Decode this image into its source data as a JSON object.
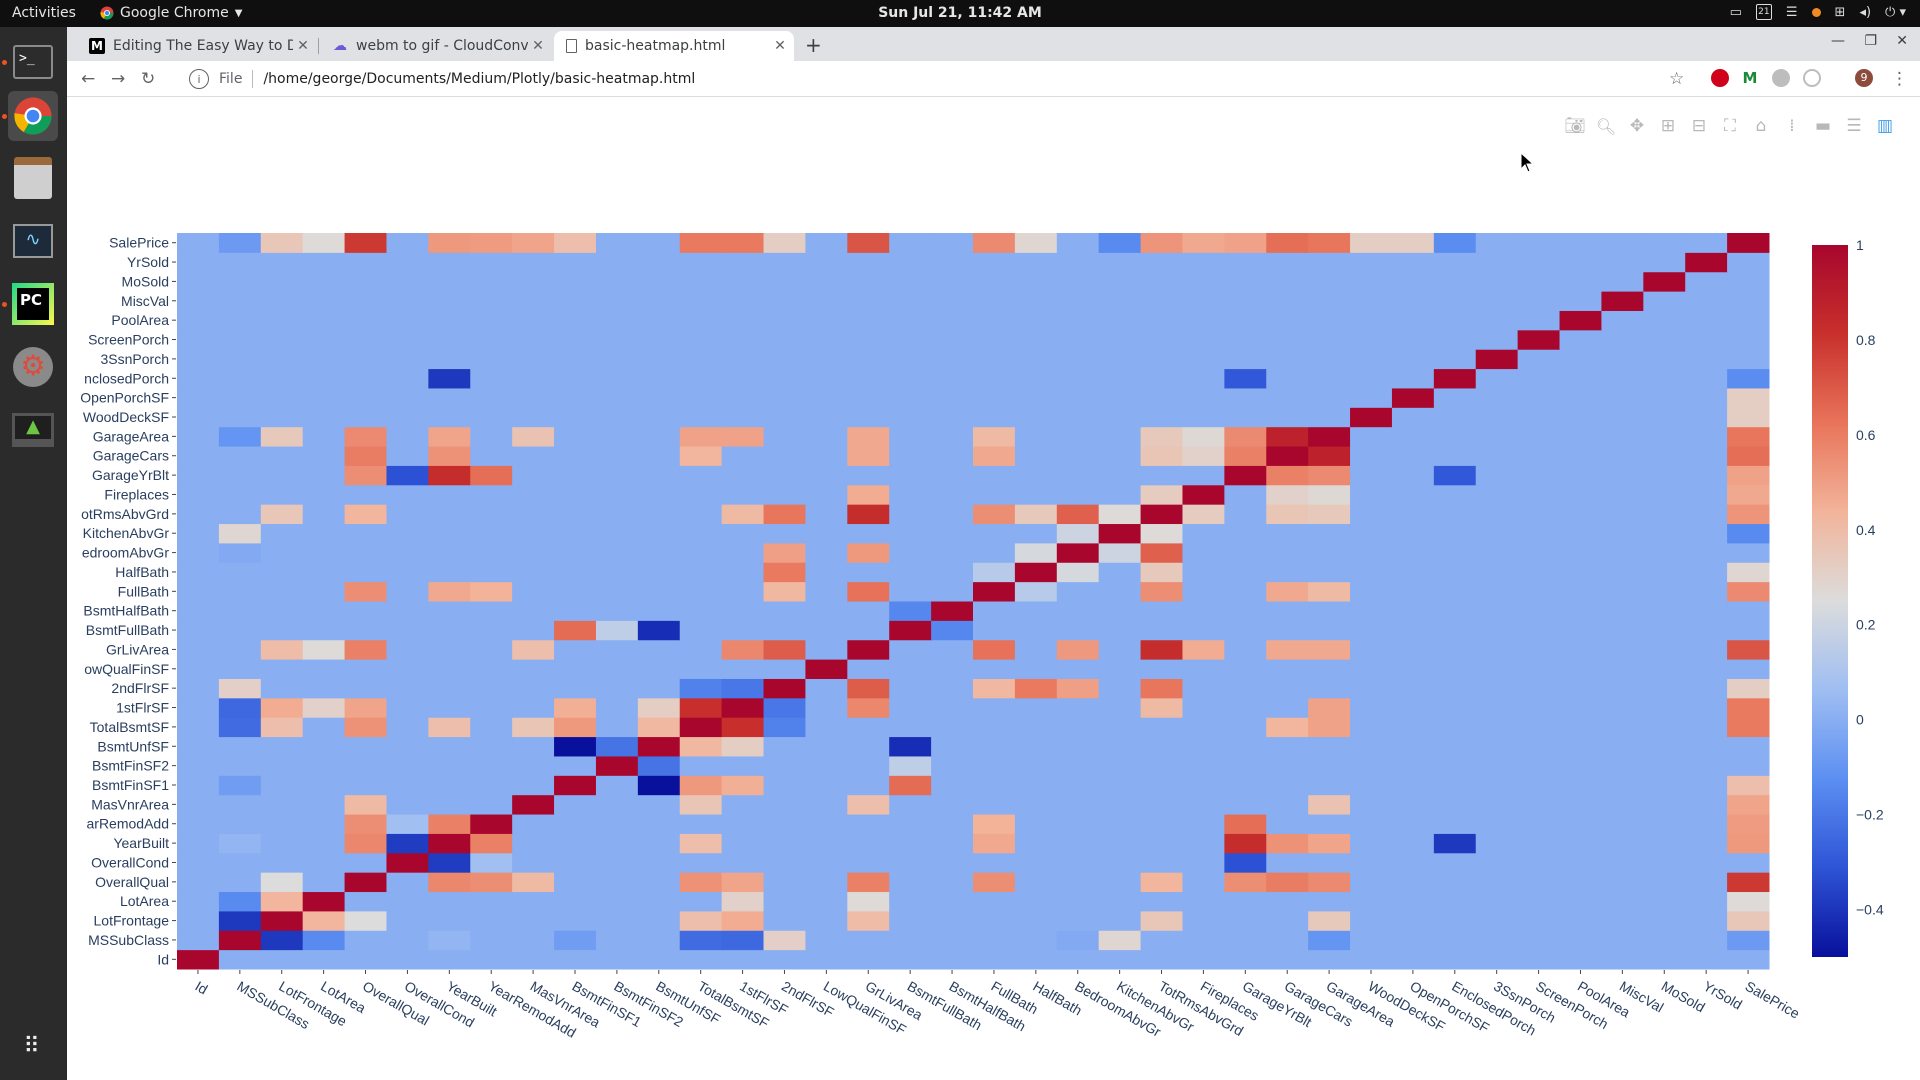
{
  "topbar": {
    "activities": "Activities",
    "app_name": "Google Chrome",
    "clock": "Sun Jul 21, 11:42 AM",
    "tray_date": "21"
  },
  "tabs": [
    {
      "title": "Editing The Easy Way to D",
      "favicon": "M"
    },
    {
      "title": "webm to gif - CloudConve",
      "favicon": "cloud"
    },
    {
      "title": "basic-heatmap.html",
      "favicon": "file"
    }
  ],
  "toolbar": {
    "file_label": "File",
    "url": "/home/george/Documents/Medium/Plotly/basic-heatmap.html",
    "profile_initial": "9"
  },
  "chart_data": {
    "type": "heatmap",
    "variables": [
      "Id",
      "MSSubClass",
      "LotFrontage",
      "LotArea",
      "OverallQual",
      "OverallCond",
      "YearBuilt",
      "YearRemodAdd",
      "MasVnrArea",
      "BsmtFinSF1",
      "BsmtFinSF2",
      "BsmtUnfSF",
      "TotalBsmtSF",
      "1stFlrSF",
      "2ndFlrSF",
      "LowQualFinSF",
      "GrLivArea",
      "BsmtFullBath",
      "BsmtHalfBath",
      "FullBath",
      "HalfBath",
      "BedroomAbvGr",
      "KitchenAbvGr",
      "TotRmsAbvGrd",
      "Fireplaces",
      "GarageYrBlt",
      "GarageCars",
      "GarageArea",
      "WoodDeckSF",
      "OpenPorchSF",
      "EnclosedPorch",
      "3SsnPorch",
      "ScreenPorch",
      "PoolArea",
      "MiscVal",
      "MoSold",
      "YrSold",
      "SalePrice"
    ],
    "y_tick_labels": [
      "Id",
      "MSSubClass",
      "LotFrontage",
      "LotArea",
      "OverallQual",
      "OverallCond",
      "YearBuilt",
      "arRemodAdd",
      "MasVnrArea",
      "BsmtFinSF1",
      "BsmtFinSF2",
      "BsmtUnfSF",
      "TotalBsmtSF",
      "1stFlrSF",
      "2ndFlrSF",
      "owQualFinSF",
      "GrLivArea",
      "BsmtFullBath",
      "BsmtHalfBath",
      "FullBath",
      "HalfBath",
      "edroomAbvGr",
      "KitchenAbvGr",
      "otRmsAbvGrd",
      "Fireplaces",
      "GarageYrBlt",
      "GarageCars",
      "GarageArea",
      "WoodDeckSF",
      "OpenPorchSF",
      "nclosedPorch",
      "3SsnPorch",
      "ScreenPorch",
      "PoolArea",
      "MiscVal",
      "MoSold",
      "YrSold",
      "SalePrice"
    ],
    "zrange": [
      -0.5,
      1
    ],
    "colorbar_ticks": [
      1,
      0.8,
      0.6,
      0.4,
      0.2,
      0,
      -0.2,
      -0.4
    ],
    "colorbar_tick_labels": [
      "1",
      "0.8",
      "0.6",
      "0.4",
      "0.2",
      "0",
      "−0.2",
      "−0.4"
    ],
    "colorscale": [
      "#08109c",
      "#2e54d6",
      "#5c8ff2",
      "#9fbef2",
      "#dcdcdc",
      "#f2b49a",
      "#e8745a",
      "#c8302c",
      "#a8062d"
    ],
    "pairs": [
      [
        "MSSubClass",
        "LotFrontage",
        -0.39
      ],
      [
        "MSSubClass",
        "LotArea",
        -0.14
      ],
      [
        "MSSubClass",
        "YearBuilt",
        0.03
      ],
      [
        "MSSubClass",
        "BsmtFinSF1",
        -0.07
      ],
      [
        "MSSubClass",
        "TotalBsmtSF",
        -0.24
      ],
      [
        "MSSubClass",
        "1stFlrSF",
        -0.25
      ],
      [
        "MSSubClass",
        "2ndFlrSF",
        0.31
      ],
      [
        "MSSubClass",
        "BedroomAbvGr",
        -0.02
      ],
      [
        "MSSubClass",
        "KitchenAbvGr",
        0.28
      ],
      [
        "MSSubClass",
        "GarageArea",
        -0.1
      ],
      [
        "MSSubClass",
        "SalePrice",
        -0.08
      ],
      [
        "LotFrontage",
        "LotArea",
        0.43
      ],
      [
        "LotFrontage",
        "OverallQual",
        0.25
      ],
      [
        "LotFrontage",
        "TotalBsmtSF",
        0.39
      ],
      [
        "LotFrontage",
        "1stFlrSF",
        0.46
      ],
      [
        "LotFrontage",
        "GrLivArea",
        0.4
      ],
      [
        "LotFrontage",
        "TotRmsAbvGrd",
        0.35
      ],
      [
        "LotFrontage",
        "GarageArea",
        0.34
      ],
      [
        "LotFrontage",
        "SalePrice",
        0.35
      ],
      [
        "LotArea",
        "1stFlrSF",
        0.3
      ],
      [
        "LotArea",
        "GrLivArea",
        0.26
      ],
      [
        "LotArea",
        "SalePrice",
        0.26
      ],
      [
        "OverallQual",
        "YearBuilt",
        0.57
      ],
      [
        "OverallQual",
        "YearRemodAdd",
        0.55
      ],
      [
        "OverallQual",
        "MasVnrArea",
        0.41
      ],
      [
        "OverallQual",
        "TotalBsmtSF",
        0.54
      ],
      [
        "OverallQual",
        "1stFlrSF",
        0.48
      ],
      [
        "OverallQual",
        "GrLivArea",
        0.59
      ],
      [
        "OverallQual",
        "FullBath",
        0.55
      ],
      [
        "OverallQual",
        "TotRmsAbvGrd",
        0.43
      ],
      [
        "OverallQual",
        "GarageYrBlt",
        0.55
      ],
      [
        "OverallQual",
        "GarageCars",
        0.6
      ],
      [
        "OverallQual",
        "GarageArea",
        0.56
      ],
      [
        "OverallQual",
        "SalePrice",
        0.79
      ],
      [
        "OverallCond",
        "YearBuilt",
        -0.38
      ],
      [
        "OverallCond",
        "YearRemodAdd",
        0.07
      ],
      [
        "OverallCond",
        "GarageYrBlt",
        -0.32
      ],
      [
        "YearBuilt",
        "YearRemodAdd",
        0.59
      ],
      [
        "YearBuilt",
        "GarageYrBlt",
        0.83
      ],
      [
        "YearBuilt",
        "GarageCars",
        0.54
      ],
      [
        "YearBuilt",
        "GarageArea",
        0.48
      ],
      [
        "YearBuilt",
        "FullBath",
        0.47
      ],
      [
        "YearBuilt",
        "EnclosedPorch",
        -0.39
      ],
      [
        "YearBuilt",
        "SalePrice",
        0.52
      ],
      [
        "YearBuilt",
        "TotalBsmtSF",
        0.39
      ],
      [
        "YearRemodAdd",
        "GarageYrBlt",
        0.64
      ],
      [
        "YearRemodAdd",
        "SalePrice",
        0.51
      ],
      [
        "YearRemodAdd",
        "FullBath",
        0.44
      ],
      [
        "MasVnrArea",
        "GrLivArea",
        0.39
      ],
      [
        "MasVnrArea",
        "GarageArea",
        0.37
      ],
      [
        "MasVnrArea",
        "SalePrice",
        0.48
      ],
      [
        "MasVnrArea",
        "TotalBsmtSF",
        0.36
      ],
      [
        "BsmtFinSF1",
        "BsmtUnfSF",
        -0.5
      ],
      [
        "BsmtFinSF1",
        "TotalBsmtSF",
        0.52
      ],
      [
        "BsmtFinSF1",
        "BsmtFullBath",
        0.65
      ],
      [
        "BsmtFinSF1",
        "1stFlrSF",
        0.45
      ],
      [
        "BsmtFinSF1",
        "SalePrice",
        0.39
      ],
      [
        "BsmtFinSF2",
        "BsmtUnfSF",
        -0.21
      ],
      [
        "BsmtFinSF2",
        "BsmtFullBath",
        0.16
      ],
      [
        "BsmtUnfSF",
        "TotalBsmtSF",
        0.42
      ],
      [
        "BsmtUnfSF",
        "BsmtFullBath",
        -0.42
      ],
      [
        "BsmtUnfSF",
        "1stFlrSF",
        0.32
      ],
      [
        "TotalBsmtSF",
        "1stFlrSF",
        0.82
      ],
      [
        "TotalBsmtSF",
        "GarageArea",
        0.49
      ],
      [
        "TotalBsmtSF",
        "GarageCars",
        0.43
      ],
      [
        "TotalBsmtSF",
        "SalePrice",
        0.61
      ],
      [
        "TotalBsmtSF",
        "2ndFlrSF",
        -0.17
      ],
      [
        "1stFlrSF",
        "GrLivArea",
        0.57
      ],
      [
        "1stFlrSF",
        "GarageArea",
        0.49
      ],
      [
        "1stFlrSF",
        "SalePrice",
        0.61
      ],
      [
        "1stFlrSF",
        "2ndFlrSF",
        -0.2
      ],
      [
        "1stFlrSF",
        "TotRmsAbvGrd",
        0.41
      ],
      [
        "2ndFlrSF",
        "GrLivArea",
        0.69
      ],
      [
        "2ndFlrSF",
        "HalfBath",
        0.61
      ],
      [
        "2ndFlrSF",
        "TotRmsAbvGrd",
        0.62
      ],
      [
        "2ndFlrSF",
        "BedroomAbvGr",
        0.5
      ],
      [
        "2ndFlrSF",
        "FullBath",
        0.42
      ],
      [
        "2ndFlrSF",
        "SalePrice",
        0.32
      ],
      [
        "GrLivArea",
        "FullBath",
        0.63
      ],
      [
        "GrLivArea",
        "TotRmsAbvGrd",
        0.83
      ],
      [
        "GrLivArea",
        "BedroomAbvGr",
        0.52
      ],
      [
        "GrLivArea",
        "GarageCars",
        0.47
      ],
      [
        "GrLivArea",
        "GarageArea",
        0.47
      ],
      [
        "GrLivArea",
        "Fireplaces",
        0.46
      ],
      [
        "GrLivArea",
        "SalePrice",
        0.71
      ],
      [
        "BsmtFullBath",
        "BsmtHalfBath",
        -0.15
      ],
      [
        "FullBath",
        "TotRmsAbvGrd",
        0.55
      ],
      [
        "FullBath",
        "GarageCars",
        0.47
      ],
      [
        "FullBath",
        "GarageArea",
        0.41
      ],
      [
        "FullBath",
        "HalfBath",
        0.14
      ],
      [
        "FullBath",
        "SalePrice",
        0.56
      ],
      [
        "HalfBath",
        "BedroomAbvGr",
        0.23
      ],
      [
        "HalfBath",
        "TotRmsAbvGrd",
        0.34
      ],
      [
        "HalfBath",
        "SalePrice",
        0.28
      ],
      [
        "BedroomAbvGr",
        "TotRmsAbvGrd",
        0.68
      ],
      [
        "BedroomAbvGr",
        "KitchenAbvGr",
        0.2
      ],
      [
        "KitchenAbvGr",
        "TotRmsAbvGrd",
        0.26
      ],
      [
        "KitchenAbvGr",
        "SalePrice",
        -0.14
      ],
      [
        "TotRmsAbvGrd",
        "Fireplaces",
        0.33
      ],
      [
        "TotRmsAbvGrd",
        "GarageCars",
        0.36
      ],
      [
        "TotRmsAbvGrd",
        "GarageArea",
        0.34
      ],
      [
        "TotRmsAbvGrd",
        "SalePrice",
        0.53
      ],
      [
        "Fireplaces",
        "GarageCars",
        0.3
      ],
      [
        "Fireplaces",
        "GarageArea",
        0.27
      ],
      [
        "Fireplaces",
        "SalePrice",
        0.47
      ],
      [
        "GarageYrBlt",
        "GarageCars",
        0.59
      ],
      [
        "GarageYrBlt",
        "GarageArea",
        0.56
      ],
      [
        "GarageYrBlt",
        "EnclosedPorch",
        -0.3
      ],
      [
        "GarageYrBlt",
        "SalePrice",
        0.49
      ],
      [
        "GarageCars",
        "GarageArea",
        0.88
      ],
      [
        "GarageCars",
        "SalePrice",
        0.64
      ],
      [
        "GarageArea",
        "SalePrice",
        0.62
      ],
      [
        "WoodDeckSF",
        "SalePrice",
        0.32
      ],
      [
        "OpenPorchSF",
        "SalePrice",
        0.32
      ],
      [
        "EnclosedPorch",
        "SalePrice",
        -0.13
      ]
    ]
  }
}
